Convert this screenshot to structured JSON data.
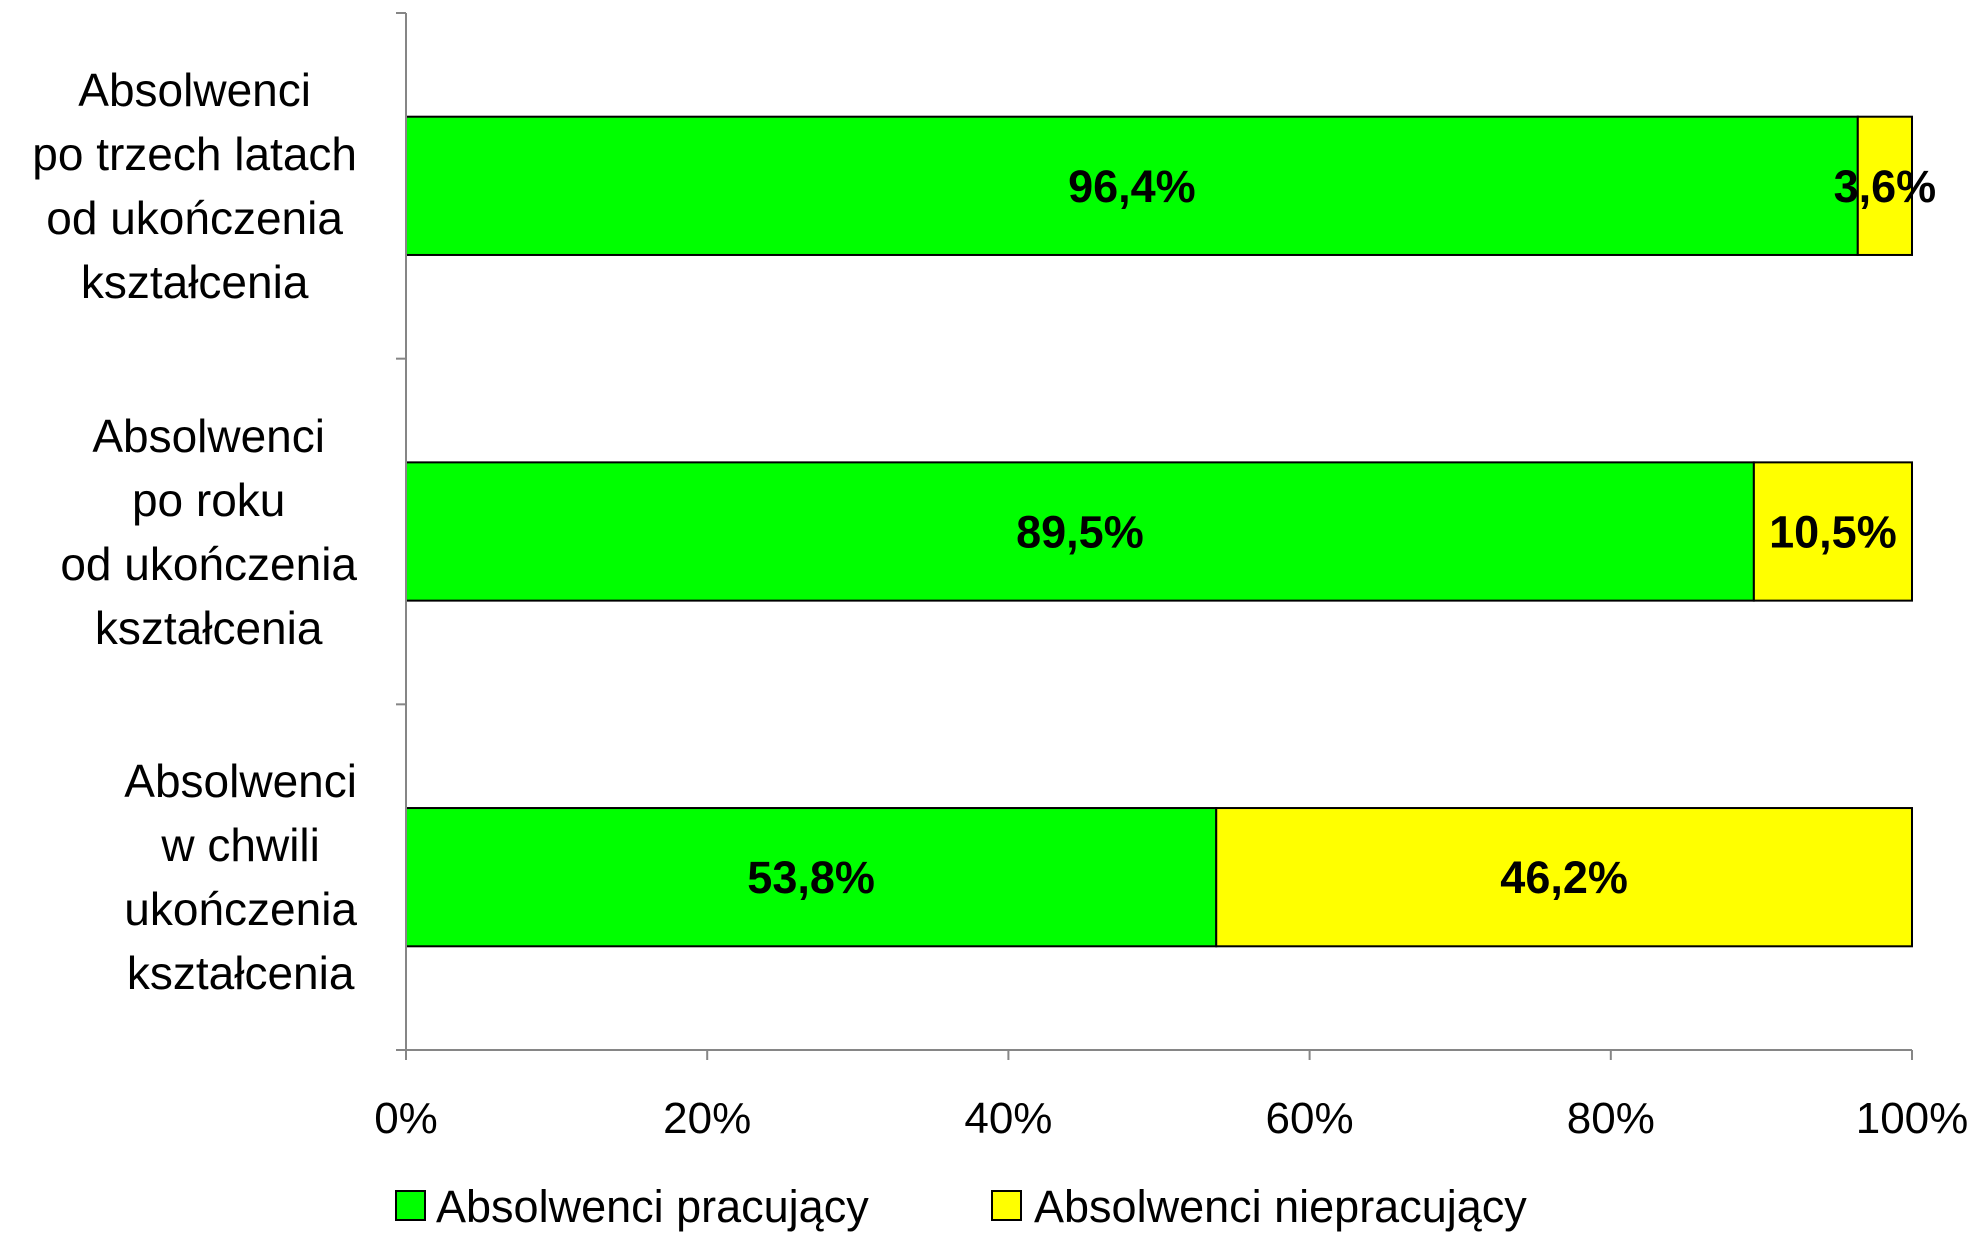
{
  "chart_data": {
    "type": "bar",
    "orientation": "horizontal",
    "stacked": "percent",
    "title": "",
    "xlabel": "",
    "ylabel": "",
    "categories": [
      "Absolwenci\npo trzech latach\nod ukończenia\nkształcenia",
      "Absolwenci\npo roku\nod ukończenia\nkształcenia",
      "Absolwenci\nw chwili\nukończenia\nkształcenia"
    ],
    "series": [
      {
        "name": "Absolwenci pracujący",
        "color": "#00FF00",
        "values": [
          96.4,
          89.5,
          53.8
        ],
        "labels": [
          "96,4%",
          "89,5%",
          "53,8%"
        ]
      },
      {
        "name": "Absolwenci niepracujący",
        "color": "#FFFF00",
        "values": [
          3.6,
          10.5,
          46.2
        ],
        "labels": [
          "3,6%",
          "10,5%",
          "46,2%"
        ]
      }
    ],
    "xlim": [
      0,
      100
    ],
    "xticks": [
      0,
      20,
      40,
      60,
      80,
      100
    ],
    "xtick_labels": [
      "0%",
      "20%",
      "40%",
      "60%",
      "80%",
      "100%"
    ],
    "grid": false,
    "legend": "bottom"
  }
}
